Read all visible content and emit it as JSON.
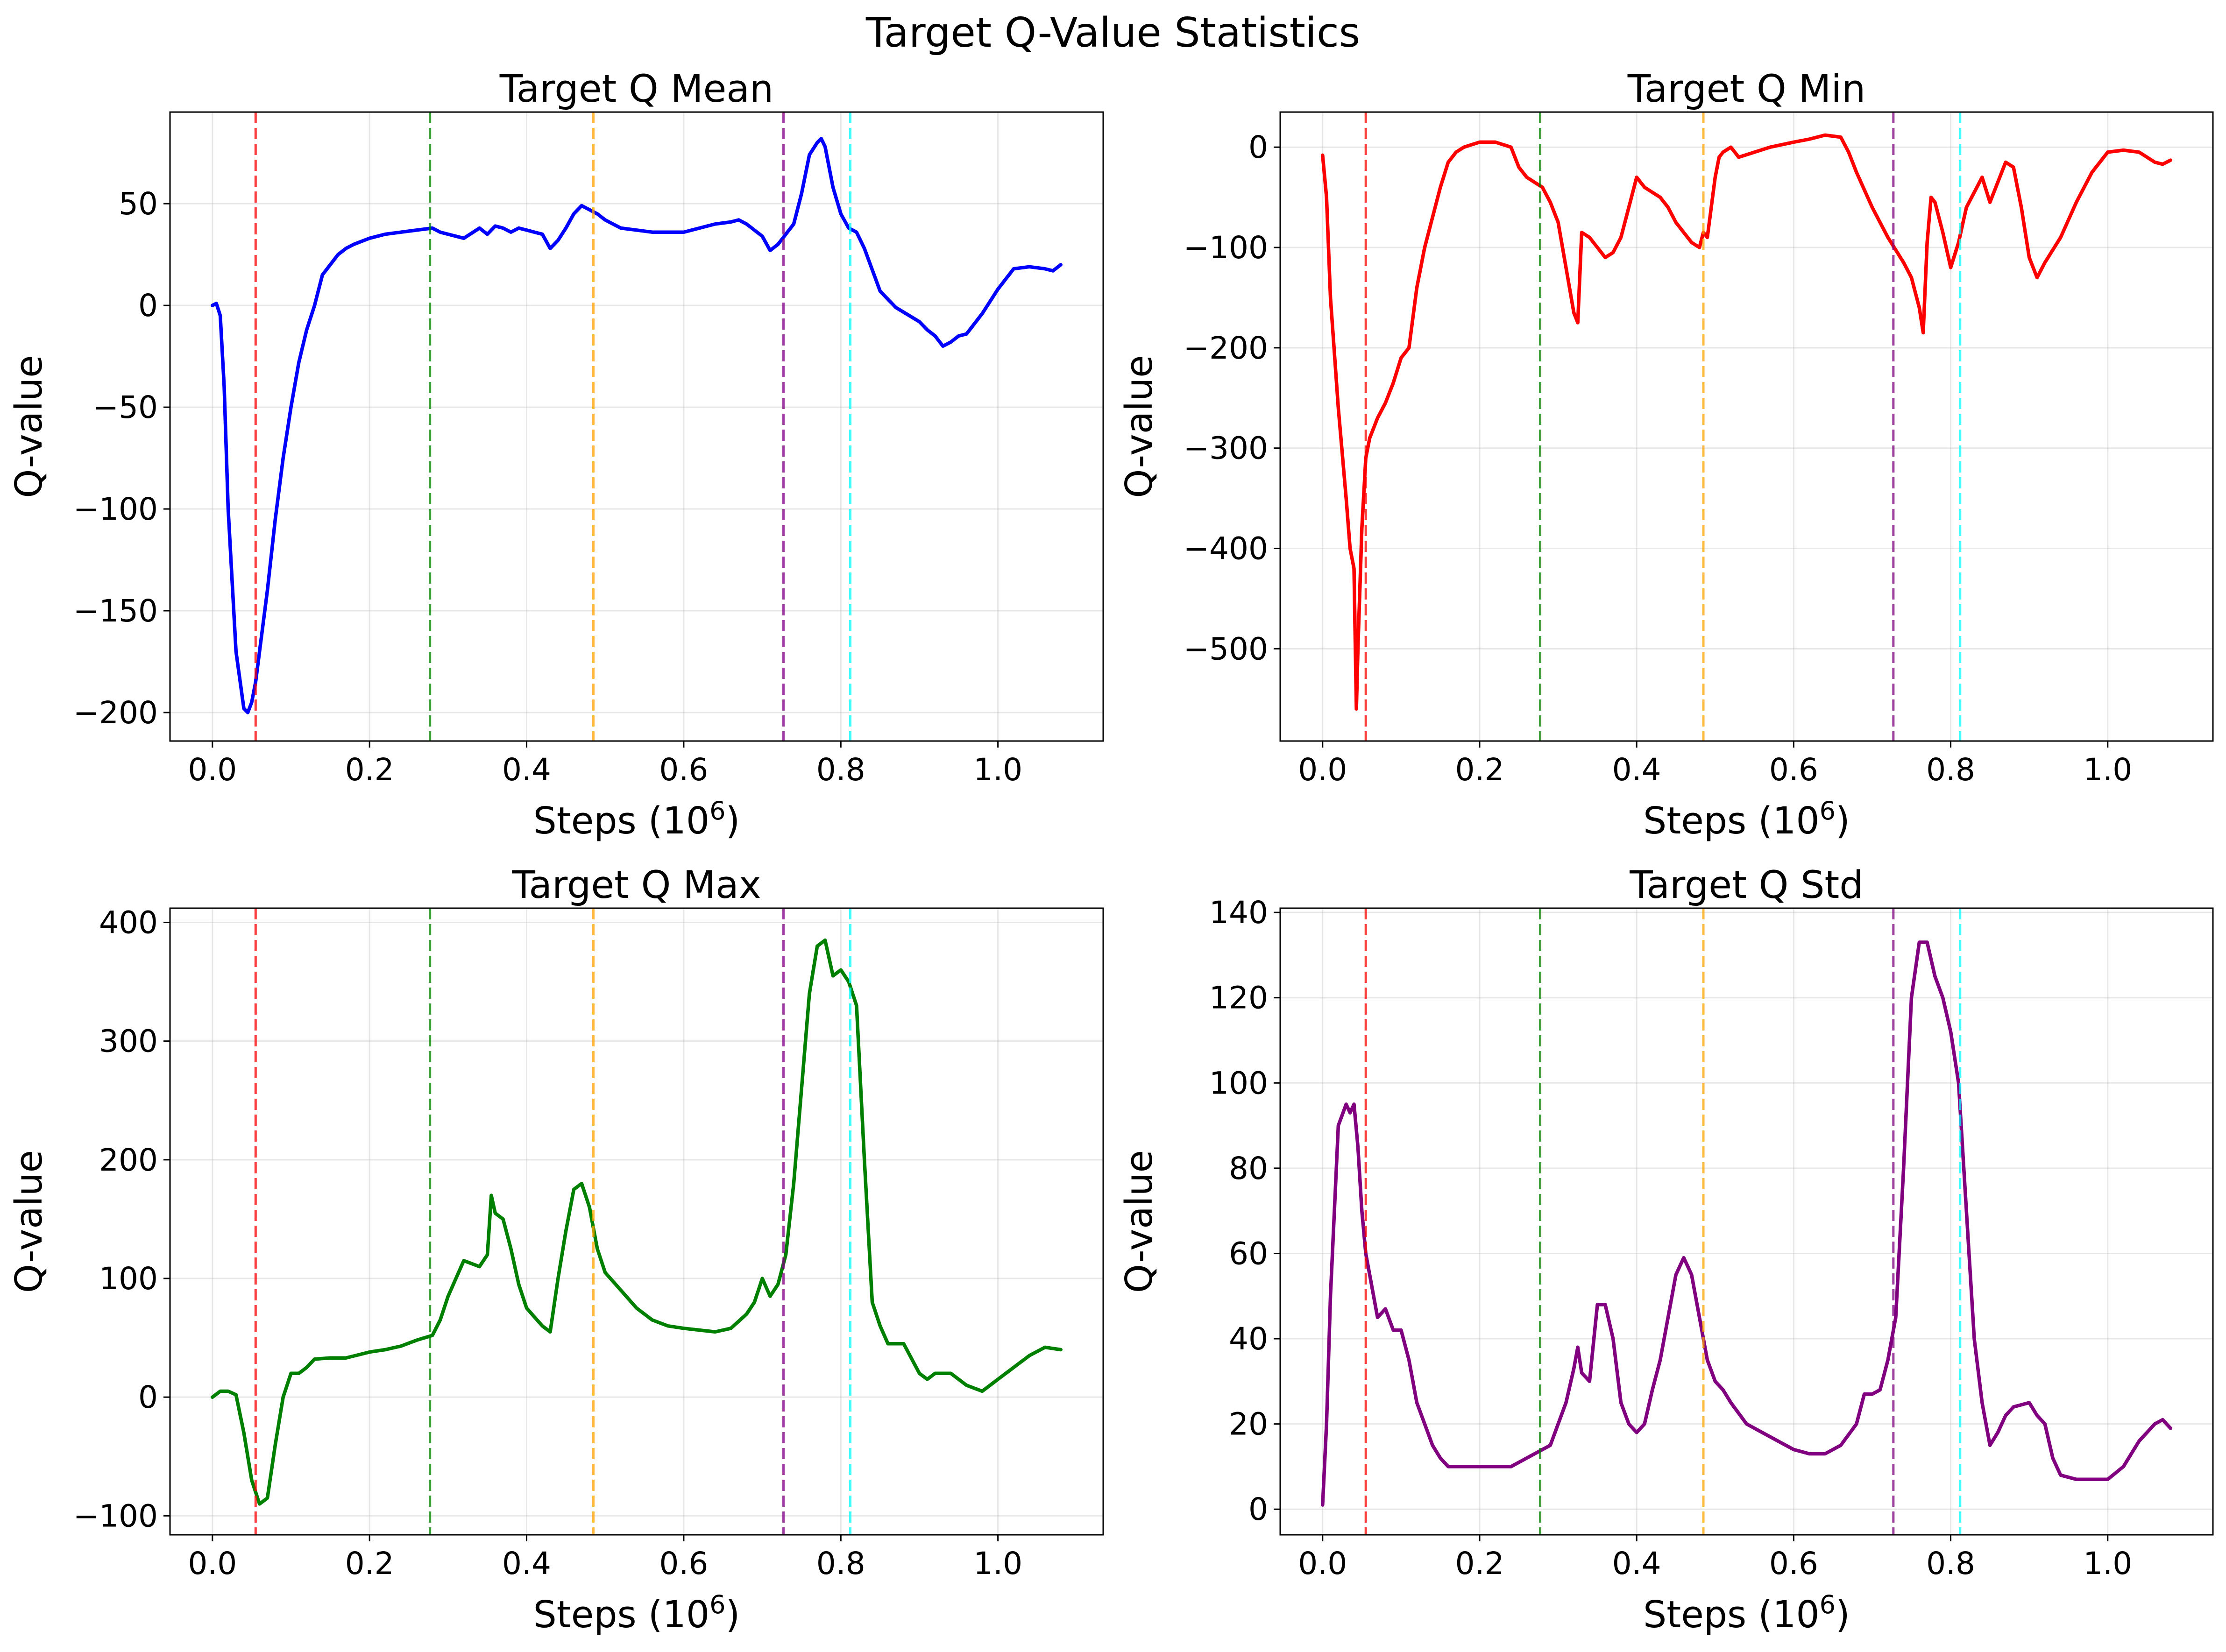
{
  "title": "Target Q-Value Statistics",
  "colors": {
    "vlines": [
      "#ff0000",
      "#008000",
      "#ffa500",
      "#800080",
      "#00ffff"
    ]
  },
  "chart_data": [
    {
      "type": "line",
      "title": "Target Q Mean",
      "xlabel": "Steps (10",
      "xlabel_sup": "6",
      "xlabel_end": ")",
      "ylabel": "Q-value",
      "grid": true,
      "xlim": [
        -0.054,
        1.134
      ],
      "ylim": [
        -214,
        95
      ],
      "xticks": [
        0.0,
        0.2,
        0.4,
        0.6,
        0.8,
        1.0
      ],
      "xtick_labels": [
        "0.0",
        "0.2",
        "0.4",
        "0.6",
        "0.8",
        "1.0"
      ],
      "yticks": [
        -200,
        -150,
        -100,
        -50,
        0,
        50
      ],
      "ytick_labels": [
        "−200",
        "−150",
        "−100",
        "−50",
        "0",
        "50"
      ],
      "vlines": [
        0.055,
        0.277,
        0.485,
        0.727,
        0.812
      ],
      "series": [
        {
          "color": "#0000ff",
          "x": [
            0.0,
            0.005,
            0.01,
            0.015,
            0.02,
            0.03,
            0.04,
            0.045,
            0.05,
            0.055,
            0.06,
            0.07,
            0.08,
            0.09,
            0.1,
            0.11,
            0.12,
            0.13,
            0.14,
            0.15,
            0.16,
            0.17,
            0.18,
            0.2,
            0.22,
            0.24,
            0.26,
            0.28,
            0.29,
            0.3,
            0.32,
            0.34,
            0.35,
            0.36,
            0.37,
            0.38,
            0.39,
            0.4,
            0.41,
            0.42,
            0.43,
            0.44,
            0.45,
            0.46,
            0.47,
            0.48,
            0.49,
            0.5,
            0.51,
            0.52,
            0.54,
            0.56,
            0.6,
            0.64,
            0.66,
            0.67,
            0.68,
            0.7,
            0.71,
            0.72,
            0.73,
            0.74,
            0.75,
            0.76,
            0.77,
            0.775,
            0.78,
            0.79,
            0.8,
            0.81,
            0.82,
            0.83,
            0.85,
            0.87,
            0.9,
            0.91,
            0.92,
            0.93,
            0.94,
            0.95,
            0.96,
            0.98,
            1.0,
            1.02,
            1.04,
            1.06,
            1.07,
            1.08
          ],
          "y": [
            0,
            1,
            -5,
            -40,
            -100,
            -170,
            -198,
            -200,
            -195,
            -185,
            -170,
            -140,
            -105,
            -75,
            -50,
            -28,
            -12,
            0,
            15,
            20,
            25,
            28,
            30,
            33,
            35,
            36,
            37,
            38,
            36,
            35,
            33,
            38,
            35,
            39,
            38,
            36,
            38,
            37,
            36,
            35,
            28,
            32,
            38,
            45,
            49,
            47,
            45,
            42,
            40,
            38,
            37,
            36,
            36,
            40,
            41,
            42,
            40,
            34,
            27,
            30,
            35,
            40,
            55,
            74,
            80,
            82,
            78,
            58,
            45,
            38,
            36,
            28,
            7,
            -1,
            -8,
            -12,
            -15,
            -20,
            -18,
            -15,
            -14,
            -4,
            8,
            18,
            19,
            18,
            17,
            20
          ]
        }
      ]
    },
    {
      "type": "line",
      "title": "Target Q Min",
      "xlabel": "Steps (10",
      "xlabel_sup": "6",
      "xlabel_end": ")",
      "ylabel": "Q-value",
      "grid": true,
      "xlim": [
        -0.054,
        1.134
      ],
      "ylim": [
        -592,
        35
      ],
      "xticks": [
        0.0,
        0.2,
        0.4,
        0.6,
        0.8,
        1.0
      ],
      "xtick_labels": [
        "0.0",
        "0.2",
        "0.4",
        "0.6",
        "0.8",
        "1.0"
      ],
      "yticks": [
        -500,
        -400,
        -300,
        -200,
        -100,
        0
      ],
      "ytick_labels": [
        "−500",
        "−400",
        "−300",
        "−200",
        "−100",
        "0"
      ],
      "vlines": [
        0.055,
        0.277,
        0.485,
        0.727,
        0.812
      ],
      "series": [
        {
          "color": "#ff0000",
          "x": [
            0.0,
            0.005,
            0.01,
            0.02,
            0.03,
            0.035,
            0.04,
            0.043,
            0.045,
            0.05,
            0.055,
            0.06,
            0.07,
            0.08,
            0.09,
            0.1,
            0.11,
            0.12,
            0.13,
            0.14,
            0.15,
            0.16,
            0.17,
            0.18,
            0.2,
            0.22,
            0.24,
            0.25,
            0.26,
            0.27,
            0.28,
            0.29,
            0.3,
            0.31,
            0.32,
            0.325,
            0.33,
            0.34,
            0.35,
            0.36,
            0.37,
            0.38,
            0.39,
            0.4,
            0.405,
            0.41,
            0.42,
            0.43,
            0.44,
            0.45,
            0.46,
            0.47,
            0.48,
            0.485,
            0.49,
            0.5,
            0.505,
            0.51,
            0.52,
            0.53,
            0.55,
            0.57,
            0.6,
            0.62,
            0.64,
            0.66,
            0.67,
            0.68,
            0.7,
            0.72,
            0.74,
            0.75,
            0.76,
            0.765,
            0.77,
            0.775,
            0.78,
            0.79,
            0.8,
            0.81,
            0.82,
            0.83,
            0.84,
            0.85,
            0.86,
            0.87,
            0.88,
            0.89,
            0.9,
            0.91,
            0.92,
            0.94,
            0.96,
            0.98,
            1.0,
            1.02,
            1.04,
            1.06,
            1.07,
            1.08
          ],
          "y": [
            -8,
            -50,
            -150,
            -260,
            -350,
            -400,
            -420,
            -560,
            -500,
            -380,
            -310,
            -290,
            -270,
            -255,
            -235,
            -210,
            -200,
            -140,
            -100,
            -70,
            -40,
            -15,
            -5,
            0,
            5,
            5,
            0,
            -20,
            -30,
            -35,
            -40,
            -55,
            -75,
            -120,
            -165,
            -175,
            -85,
            -90,
            -100,
            -110,
            -105,
            -90,
            -60,
            -30,
            -35,
            -40,
            -45,
            -50,
            -60,
            -75,
            -85,
            -95,
            -100,
            -85,
            -90,
            -30,
            -10,
            -5,
            0,
            -10,
            -5,
            0,
            5,
            8,
            12,
            10,
            -5,
            -25,
            -60,
            -90,
            -115,
            -130,
            -160,
            -185,
            -95,
            -50,
            -55,
            -85,
            -120,
            -95,
            -60,
            -45,
            -30,
            -55,
            -35,
            -15,
            -20,
            -60,
            -110,
            -130,
            -115,
            -90,
            -55,
            -25,
            -5,
            -3,
            -5,
            -15,
            -17,
            -13
          ]
        }
      ]
    },
    {
      "type": "line",
      "title": "Target Q Max",
      "xlabel": "Steps (10",
      "xlabel_sup": "6",
      "xlabel_end": ")",
      "ylabel": "Q-value",
      "grid": true,
      "xlim": [
        -0.054,
        1.134
      ],
      "ylim": [
        -116,
        412
      ],
      "xticks": [
        0.0,
        0.2,
        0.4,
        0.6,
        0.8,
        1.0
      ],
      "xtick_labels": [
        "0.0",
        "0.2",
        "0.4",
        "0.6",
        "0.8",
        "1.0"
      ],
      "yticks": [
        -100,
        0,
        100,
        200,
        300,
        400
      ],
      "ytick_labels": [
        "−100",
        "0",
        "100",
        "200",
        "300",
        "400"
      ],
      "vlines": [
        0.055,
        0.277,
        0.485,
        0.727,
        0.812
      ],
      "series": [
        {
          "color": "#008000",
          "x": [
            0.0,
            0.01,
            0.02,
            0.03,
            0.04,
            0.05,
            0.06,
            0.07,
            0.08,
            0.09,
            0.1,
            0.11,
            0.12,
            0.13,
            0.15,
            0.17,
            0.2,
            0.22,
            0.24,
            0.26,
            0.28,
            0.29,
            0.3,
            0.31,
            0.32,
            0.34,
            0.35,
            0.355,
            0.36,
            0.37,
            0.38,
            0.39,
            0.4,
            0.42,
            0.43,
            0.44,
            0.45,
            0.46,
            0.47,
            0.48,
            0.49,
            0.5,
            0.52,
            0.54,
            0.56,
            0.58,
            0.6,
            0.64,
            0.66,
            0.68,
            0.69,
            0.7,
            0.71,
            0.72,
            0.73,
            0.74,
            0.75,
            0.76,
            0.77,
            0.78,
            0.79,
            0.8,
            0.81,
            0.82,
            0.83,
            0.84,
            0.85,
            0.86,
            0.87,
            0.88,
            0.9,
            0.91,
            0.92,
            0.94,
            0.96,
            0.98,
            1.0,
            1.02,
            1.04,
            1.06,
            1.08
          ],
          "y": [
            0,
            5,
            5,
            2,
            -30,
            -70,
            -90,
            -85,
            -40,
            0,
            20,
            20,
            25,
            32,
            33,
            33,
            38,
            40,
            43,
            48,
            52,
            65,
            85,
            100,
            115,
            110,
            120,
            170,
            155,
            150,
            125,
            95,
            75,
            60,
            55,
            100,
            140,
            175,
            180,
            160,
            125,
            105,
            90,
            75,
            65,
            60,
            58,
            55,
            58,
            70,
            80,
            100,
            85,
            95,
            120,
            180,
            260,
            340,
            380,
            385,
            355,
            360,
            350,
            330,
            200,
            80,
            60,
            45,
            45,
            45,
            20,
            15,
            20,
            20,
            10,
            5,
            15,
            25,
            35,
            42,
            40
          ]
        }
      ]
    },
    {
      "type": "line",
      "title": "Target Q Std",
      "xlabel": "Steps (10",
      "xlabel_sup": "6",
      "xlabel_end": ")",
      "ylabel": "Q-value",
      "grid": true,
      "xlim": [
        -0.054,
        1.134
      ],
      "ylim": [
        -6,
        141
      ],
      "xticks": [
        0.0,
        0.2,
        0.4,
        0.6,
        0.8,
        1.0
      ],
      "xtick_labels": [
        "0.0",
        "0.2",
        "0.4",
        "0.6",
        "0.8",
        "1.0"
      ],
      "yticks": [
        0,
        20,
        40,
        60,
        80,
        100,
        120,
        140
      ],
      "ytick_labels": [
        "0",
        "20",
        "40",
        "60",
        "80",
        "100",
        "120",
        "140"
      ],
      "vlines": [
        0.055,
        0.277,
        0.485,
        0.727,
        0.812
      ],
      "series": [
        {
          "color": "#800080",
          "x": [
            0.0,
            0.005,
            0.01,
            0.02,
            0.03,
            0.035,
            0.04,
            0.045,
            0.05,
            0.055,
            0.06,
            0.07,
            0.08,
            0.09,
            0.1,
            0.11,
            0.12,
            0.13,
            0.14,
            0.15,
            0.16,
            0.18,
            0.2,
            0.22,
            0.24,
            0.26,
            0.28,
            0.29,
            0.3,
            0.31,
            0.32,
            0.325,
            0.33,
            0.34,
            0.35,
            0.36,
            0.37,
            0.38,
            0.39,
            0.4,
            0.41,
            0.42,
            0.43,
            0.44,
            0.45,
            0.46,
            0.47,
            0.48,
            0.49,
            0.5,
            0.51,
            0.52,
            0.54,
            0.56,
            0.58,
            0.6,
            0.62,
            0.64,
            0.66,
            0.68,
            0.69,
            0.7,
            0.71,
            0.72,
            0.73,
            0.74,
            0.75,
            0.76,
            0.77,
            0.78,
            0.79,
            0.8,
            0.81,
            0.82,
            0.83,
            0.84,
            0.85,
            0.86,
            0.87,
            0.88,
            0.9,
            0.91,
            0.92,
            0.93,
            0.94,
            0.96,
            0.98,
            0.99,
            1.0,
            1.02,
            1.04,
            1.06,
            1.07,
            1.08
          ],
          "y": [
            1,
            20,
            50,
            90,
            95,
            93,
            95,
            85,
            70,
            60,
            55,
            45,
            47,
            42,
            42,
            35,
            25,
            20,
            15,
            12,
            10,
            10,
            10,
            10,
            10,
            12,
            14,
            15,
            20,
            25,
            33,
            38,
            32,
            30,
            48,
            48,
            40,
            25,
            20,
            18,
            20,
            28,
            35,
            45,
            55,
            59,
            55,
            45,
            35,
            30,
            28,
            25,
            20,
            18,
            16,
            14,
            13,
            13,
            15,
            20,
            27,
            27,
            28,
            35,
            45,
            80,
            120,
            133,
            133,
            125,
            120,
            112,
            100,
            70,
            40,
            25,
            15,
            18,
            22,
            24,
            25,
            22,
            20,
            12,
            8,
            7,
            7,
            7,
            7,
            10,
            16,
            20,
            21,
            19
          ]
        }
      ]
    }
  ]
}
